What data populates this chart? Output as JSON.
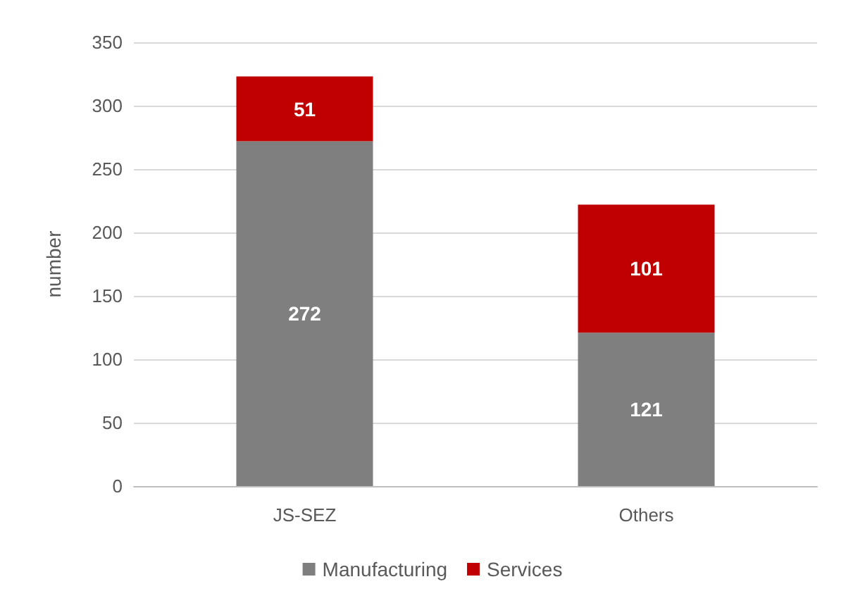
{
  "chart_data": {
    "type": "bar",
    "stacked": true,
    "ylabel": "number",
    "categories": [
      "JS-SEZ",
      "Others"
    ],
    "series": [
      {
        "name": "Manufacturing",
        "color": "#7f7f7f",
        "values": [
          272,
          121
        ]
      },
      {
        "name": "Services",
        "color": "#c00000",
        "values": [
          51,
          101
        ]
      }
    ],
    "ylim": [
      0,
      350
    ],
    "yticks": [
      0,
      50,
      100,
      150,
      200,
      250,
      300,
      350
    ],
    "grid": "y",
    "legend": "bottom",
    "data_labels": true
  }
}
